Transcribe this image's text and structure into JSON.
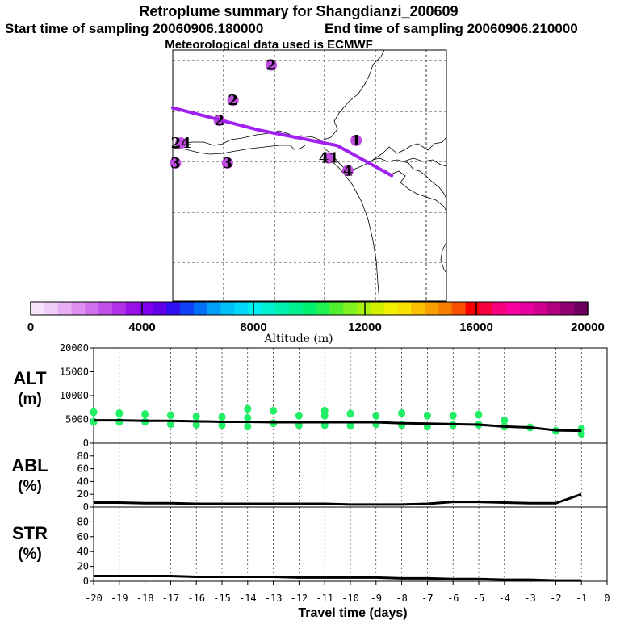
{
  "header": {
    "title": "Retroplume summary for Shangdianzi_200609",
    "start_sampling": "Start time of sampling 20060906.180000",
    "end_sampling": "End time of sampling 20060906.210000",
    "met_data": "Meteorological data used is ECMWF"
  },
  "colors": {
    "plume": "#a020f0",
    "markers": "#c04ce0",
    "green": "#22ee66"
  },
  "chart_data": [
    {
      "id": "map",
      "type": "scatter",
      "title": "Retroplume map",
      "labels": [
        {
          "text": "2",
          "lon": 0.36,
          "lat": 0.94
        },
        {
          "text": "2",
          "lon": 0.22,
          "lat": 0.8
        },
        {
          "text": "2",
          "lon": 0.17,
          "lat": 0.72
        },
        {
          "text": "24",
          "lon": 0.03,
          "lat": 0.63
        },
        {
          "text": "3",
          "lon": 0.01,
          "lat": 0.55
        },
        {
          "text": "3",
          "lon": 0.2,
          "lat": 0.55
        },
        {
          "text": "1",
          "lon": 0.67,
          "lat": 0.64
        },
        {
          "text": "41",
          "lon": 0.57,
          "lat": 0.57
        },
        {
          "text": "4",
          "lon": 0.64,
          "lat": 0.52
        }
      ],
      "centroid_path": [
        [
          0.0,
          0.77
        ],
        [
          0.32,
          0.68
        ],
        [
          0.6,
          0.62
        ],
        [
          0.8,
          0.5
        ]
      ]
    },
    {
      "id": "colorbar",
      "type": "heatmap",
      "xlabel": "Altitude (m)",
      "ticks": [
        "0",
        "4000",
        "8000",
        "12000",
        "16000",
        "20000"
      ],
      "range": [
        0,
        20000
      ],
      "colors": [
        "#f7e4fb",
        "#f0ccf8",
        "#e8b0f4",
        "#dd90f0",
        "#d070ec",
        "#c050e8",
        "#b030e8",
        "#9a10e8",
        "#8000f0",
        "#6000e8",
        "#3010f0",
        "#1040f8",
        "#0070f8",
        "#00a0f8",
        "#00c0f8",
        "#00d8f8",
        "#00f0f0",
        "#00f0d0",
        "#00f0b0",
        "#00f090",
        "#00f070",
        "#20f050",
        "#50f030",
        "#80f020",
        "#a8f010",
        "#d0f000",
        "#f0f000",
        "#f8e000",
        "#f8c000",
        "#f8a000",
        "#f88000",
        "#f85000",
        "#f80000",
        "#f80040",
        "#f80080",
        "#f800a0",
        "#e800a0",
        "#d00090",
        "#b00080",
        "#900070",
        "#700060"
      ]
    },
    {
      "id": "alt",
      "type": "line",
      "ylabel": "ALT (m)",
      "ylim": [
        0,
        20000
      ],
      "yticks": [
        "0",
        "5000",
        "10000",
        "15000",
        "20000"
      ],
      "x": [
        -20,
        -19,
        -18,
        -17,
        -16,
        -15,
        -14,
        -13,
        -12,
        -11,
        -10,
        -9,
        -8,
        -7,
        -6,
        -5,
        -4,
        -3,
        -2,
        -1
      ],
      "values": [
        4800,
        4800,
        4700,
        4700,
        4600,
        4500,
        4500,
        4400,
        4400,
        4400,
        4400,
        4400,
        4200,
        4100,
        4000,
        3900,
        3500,
        3300,
        2700,
        2600
      ],
      "scatter": [
        {
          "x": -20,
          "y": 4500
        },
        {
          "x": -20,
          "y": 6500
        },
        {
          "x": -19,
          "y": 4500
        },
        {
          "x": -19,
          "y": 6300
        },
        {
          "x": -18,
          "y": 4500
        },
        {
          "x": -18,
          "y": 6100
        },
        {
          "x": -17,
          "y": 4000
        },
        {
          "x": -17,
          "y": 5900
        },
        {
          "x": -16,
          "y": 3900
        },
        {
          "x": -16,
          "y": 5600
        },
        {
          "x": -15,
          "y": 3800
        },
        {
          "x": -15,
          "y": 5500
        },
        {
          "x": -14,
          "y": 3500
        },
        {
          "x": -14,
          "y": 5300
        },
        {
          "x": -14,
          "y": 7200
        },
        {
          "x": -13,
          "y": 4200
        },
        {
          "x": -13,
          "y": 6800
        },
        {
          "x": -12,
          "y": 3800
        },
        {
          "x": -12,
          "y": 5800
        },
        {
          "x": -11,
          "y": 3800
        },
        {
          "x": -11,
          "y": 5800
        },
        {
          "x": -11,
          "y": 6800
        },
        {
          "x": -10,
          "y": 3700
        },
        {
          "x": -10,
          "y": 6200
        },
        {
          "x": -9,
          "y": 4000
        },
        {
          "x": -9,
          "y": 5800
        },
        {
          "x": -8,
          "y": 3800
        },
        {
          "x": -8,
          "y": 6300
        },
        {
          "x": -7,
          "y": 3500
        },
        {
          "x": -7,
          "y": 5800
        },
        {
          "x": -6,
          "y": 3800
        },
        {
          "x": -6,
          "y": 5800
        },
        {
          "x": -5,
          "y": 3900
        },
        {
          "x": -5,
          "y": 6000
        },
        {
          "x": -4,
          "y": 3500
        },
        {
          "x": -4,
          "y": 4800
        },
        {
          "x": -3,
          "y": 3300
        },
        {
          "x": -2,
          "y": 2600
        },
        {
          "x": -1,
          "y": 2000
        },
        {
          "x": -1,
          "y": 3000
        }
      ]
    },
    {
      "id": "abl",
      "type": "line",
      "ylabel": "ABL (%)",
      "ylim": [
        0,
        100
      ],
      "yticks": [
        "0",
        "20",
        "40",
        "60",
        "80"
      ],
      "x": [
        -20,
        -19,
        -18,
        -17,
        -16,
        -15,
        -14,
        -13,
        -12,
        -11,
        -10,
        -9,
        -8,
        -7,
        -6,
        -5,
        -4,
        -3,
        -2,
        -1
      ],
      "values": [
        7,
        7,
        6,
        6,
        5,
        5,
        5,
        5,
        5,
        5,
        4,
        4,
        4,
        5,
        8,
        8,
        7,
        6,
        6,
        20
      ]
    },
    {
      "id": "str",
      "type": "line",
      "ylabel": "STR (%)",
      "ylim": [
        0,
        100
      ],
      "yticks": [
        "0",
        "20",
        "40",
        "60",
        "80"
      ],
      "x": [
        -20,
        -19,
        -18,
        -17,
        -16,
        -15,
        -14,
        -13,
        -12,
        -11,
        -10,
        -9,
        -8,
        -7,
        -6,
        -5,
        -4,
        -3,
        -2,
        -1
      ],
      "values": [
        7,
        7,
        7,
        7,
        6,
        6,
        6,
        6,
        5,
        5,
        5,
        5,
        4,
        4,
        3,
        3,
        2,
        2,
        1,
        1
      ],
      "xlabel": "Travel time (days)",
      "xticks": [
        "-20",
        "-19",
        "-18",
        "-17",
        "-16",
        "-15",
        "-14",
        "-13",
        "-12",
        "-11",
        "-10",
        "-9",
        "-8",
        "-7",
        "-6",
        "-5",
        "-4",
        "-3",
        "-2",
        "-1",
        "0"
      ]
    }
  ]
}
